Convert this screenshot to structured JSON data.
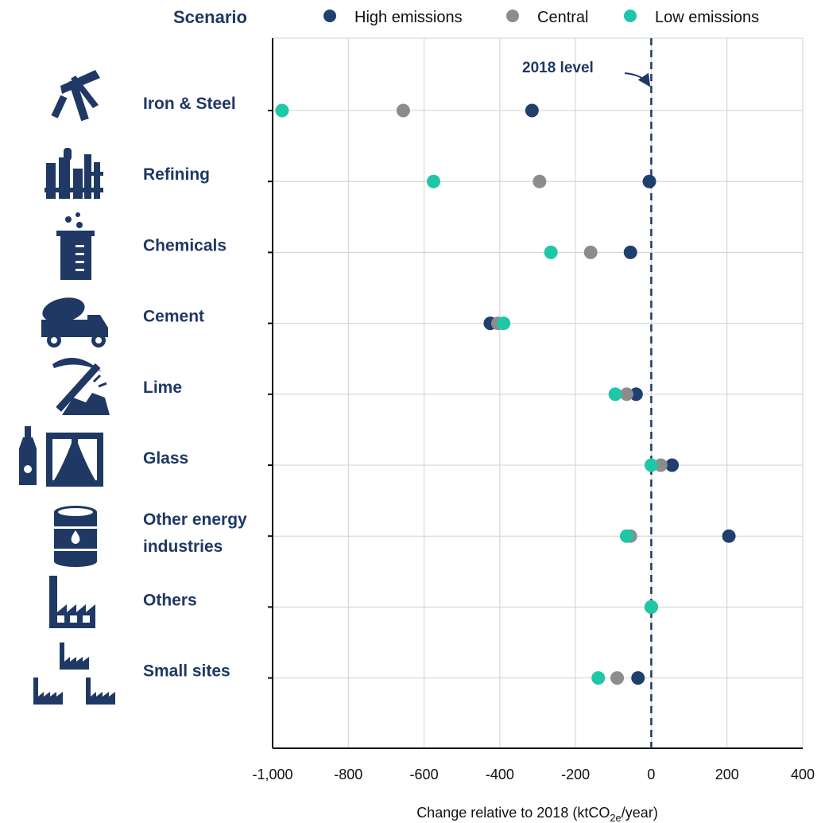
{
  "legend": {
    "title": "Scenario",
    "items": [
      {
        "label": "High emissions",
        "color": "#1f3f6e"
      },
      {
        "label": "Central",
        "color": "#8c8c8c"
      },
      {
        "label": "Low emissions",
        "color": "#1ec7a5"
      }
    ]
  },
  "annotation": "2018 level",
  "icons": [
    "pickaxe-hammer-icon",
    "refinery-icon",
    "beaker-icon",
    "cement-truck-icon",
    "pickaxe-rocks-icon",
    "bottle-window-icon",
    "oil-barrel-icon",
    "factory-icon",
    "small-factories-icon"
  ],
  "chart_data": {
    "type": "scatter",
    "categories": [
      {
        "label": [
          "Iron & Steel"
        ]
      },
      {
        "label": [
          "Refining"
        ]
      },
      {
        "label": [
          "Chemicals"
        ]
      },
      {
        "label": [
          "Cement"
        ]
      },
      {
        "label": [
          "Lime"
        ]
      },
      {
        "label": [
          "Glass"
        ]
      },
      {
        "label": [
          "Other energy",
          "industries"
        ]
      },
      {
        "label": [
          "Others"
        ]
      },
      {
        "label": [
          "Small sites"
        ]
      }
    ],
    "series": [
      {
        "name": "High emissions",
        "color": "#1f3f6e",
        "values": [
          -315,
          -5,
          -55,
          -425,
          -40,
          55,
          205,
          0,
          -35
        ]
      },
      {
        "name": "Central",
        "color": "#8c8c8c",
        "values": [
          -655,
          -295,
          -160,
          -405,
          -65,
          25,
          -55,
          0,
          -90
        ]
      },
      {
        "name": "Low emissions",
        "color": "#1ec7a5",
        "values": [
          -975,
          -575,
          -265,
          -390,
          -95,
          0,
          -65,
          0,
          -140
        ]
      }
    ],
    "x_ticks": [
      "-1,000",
      "-800",
      "-600",
      "-400",
      "-200",
      "0",
      "200",
      "400"
    ],
    "xlim": [
      -1000,
      400
    ],
    "reference_line": {
      "x": 0,
      "style": "dashed"
    },
    "xlabel_parts": {
      "main": "Change relative to 2018 (ktCO",
      "sub": "2e",
      "tail": "/year)"
    },
    "grid": true,
    "legend_position": "top"
  }
}
